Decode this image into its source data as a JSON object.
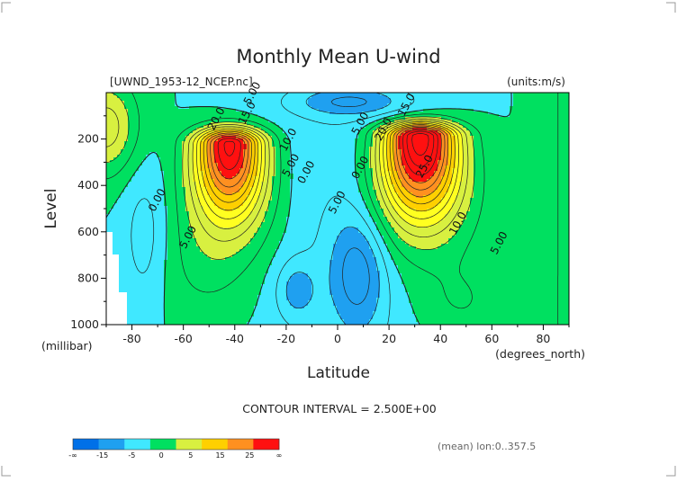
{
  "chart_data": {
    "type": "heatmap",
    "title": "Monthly Mean U-wind",
    "file_label": "[UWND_1953-12_NCEP.nc]",
    "units_label": "(units:m/s)",
    "xlabel": "Latitude",
    "ylabel": "Level",
    "x_unit_label": "(degrees_north)",
    "y_unit_label": "(millibar)",
    "xlim": [
      -90,
      90
    ],
    "ylim": [
      1000,
      0
    ],
    "x_ticks": [
      -80,
      -60,
      -40,
      -20,
      0,
      20,
      40,
      60,
      80
    ],
    "y_ticks": [
      200,
      400,
      600,
      800,
      1000
    ],
    "contour_interval": "CONTOUR INTERVAL = 2.500E+00",
    "mean_label": "(mean) lon:0..357.5",
    "colorbar": {
      "ticks": [
        "-∞",
        "-15",
        "-5",
        "0",
        "5",
        "15",
        "25",
        "∞"
      ],
      "colors": [
        "#0070e8",
        "#1fa0f0",
        "#40e8ff",
        "#00e060",
        "#d8f040",
        "#ffd000",
        "#ff9020",
        "#ff1010"
      ],
      "bounds": [
        -1000000000.0,
        -15,
        -5,
        0,
        5,
        15,
        25,
        1000000000.0
      ]
    },
    "fill_colors": {
      "below_neg10": "#0070e8",
      "neg10_to_neg5": "#1fa0f0",
      "neg5_to_0": "#40e8ff",
      "0_to_5": "#00e060",
      "5_to_10": "#d8f040",
      "10_to_15": "#ffff20",
      "15_to_20": "#ffd000",
      "20_to_25": "#ff9020",
      "above_25": "#ff1010"
    },
    "features": [
      {
        "name": "sh_jet",
        "center_lat": -42,
        "center_level": 220,
        "peak": 27.5
      },
      {
        "name": "nh_jet",
        "center_lat": 32,
        "center_level": 190,
        "peak": 30
      },
      {
        "name": "tropical_easterly",
        "center_lat": 8,
        "center_level": 800,
        "value": -7.5
      }
    ],
    "contour_labels": [
      {
        "text": "5.00",
        "lat": -32,
        "level": 10
      },
      {
        "text": "20.0",
        "lat": -46,
        "level": 120
      },
      {
        "text": "15.0",
        "lat": -34,
        "level": 95
      },
      {
        "text": "10.0",
        "lat": -18,
        "level": 210
      },
      {
        "text": "5.00",
        "lat": -17,
        "level": 320
      },
      {
        "text": "0.00",
        "lat": -11,
        "level": 350
      },
      {
        "text": "0.00",
        "lat": -69,
        "level": 470
      },
      {
        "text": "5.00",
        "lat": -57,
        "level": 630
      },
      {
        "text": "5.00",
        "lat": 10,
        "level": 140
      },
      {
        "text": "0.00",
        "lat": 10,
        "level": 330
      },
      {
        "text": "5.00",
        "lat": 1,
        "level": 480
      },
      {
        "text": "15.0",
        "lat": 28,
        "level": 60
      },
      {
        "text": "20.0",
        "lat": 19,
        "level": 165
      },
      {
        "text": "25.0",
        "lat": 35,
        "level": 325
      },
      {
        "text": "10.0",
        "lat": 48,
        "level": 570
      },
      {
        "text": "5.00",
        "lat": 64,
        "level": 655
      }
    ]
  }
}
